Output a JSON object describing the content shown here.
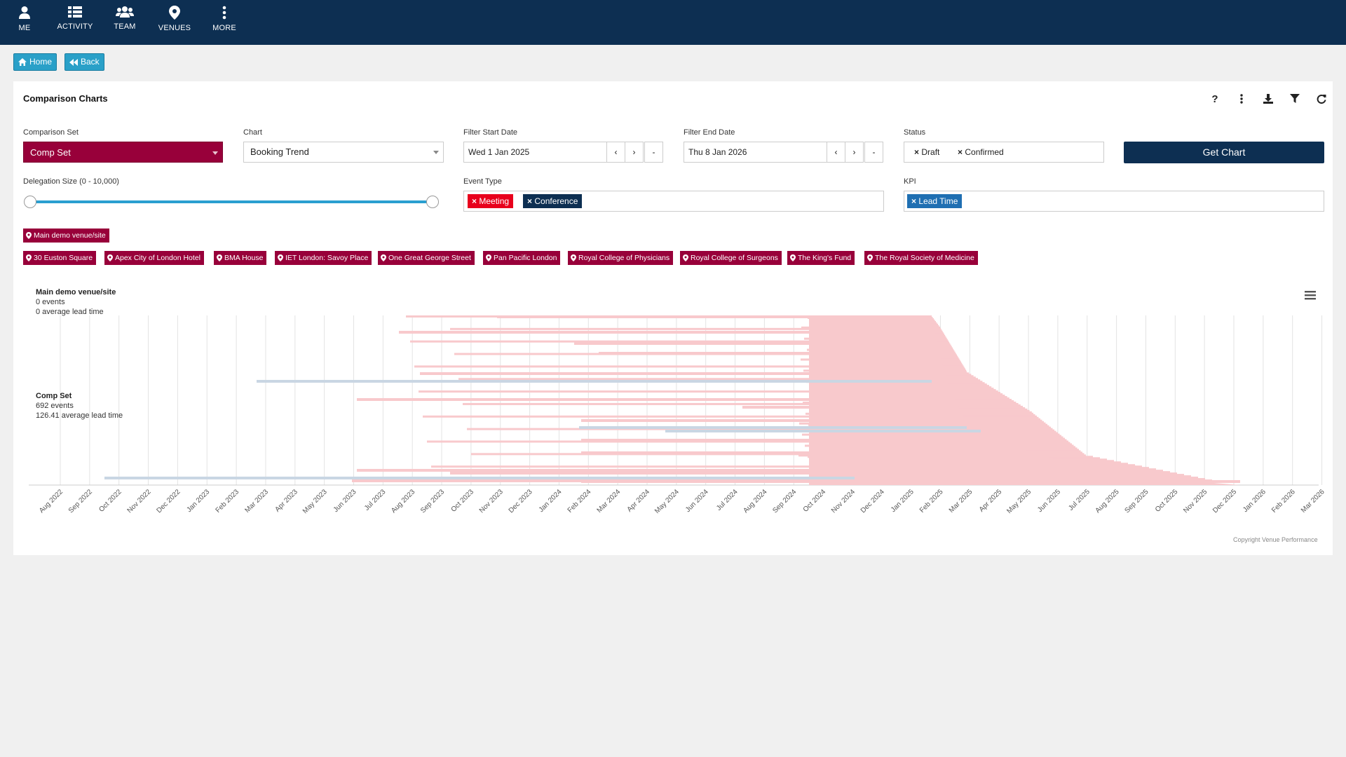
{
  "nav": [
    {
      "label": "ME",
      "icon": "user-icon"
    },
    {
      "label": "ACTIVITY",
      "icon": "list-icon"
    },
    {
      "label": "TEAM",
      "icon": "team-icon"
    },
    {
      "label": "VENUES",
      "icon": "map-pin-icon"
    },
    {
      "label": "MORE",
      "icon": "more-vertical-icon"
    }
  ],
  "breadcrumb": {
    "home": "Home",
    "back": "Back"
  },
  "panel": {
    "title": "Comparison Charts"
  },
  "toolbar": [
    "help-icon",
    "more-vertical-icon",
    "download-icon",
    "filter-icon",
    "refresh-icon"
  ],
  "toolbar_help": "?",
  "form": {
    "comparison_set": {
      "label": "Comparison Set",
      "value": "Comp Set"
    },
    "chart": {
      "label": "Chart",
      "value": "Booking Trend"
    },
    "filter_start": {
      "label": "Filter Start Date",
      "value": "Wed 1 Jan 2025"
    },
    "filter_end": {
      "label": "Filter End Date",
      "value": "Thu 8 Jan 2026"
    },
    "status": {
      "label": "Status",
      "chips": [
        "Draft",
        "Confirmed"
      ]
    },
    "get_chart": "Get Chart",
    "delegation": {
      "label": "Delegation Size (0 - 10,000)",
      "min": 0,
      "max": 10000
    },
    "event_type": {
      "label": "Event Type",
      "chips": [
        "Meeting",
        "Conference"
      ]
    },
    "kpi": {
      "label": "KPI",
      "chips": [
        "Lead Time"
      ]
    },
    "date_buttons": {
      "prev": "‹",
      "next": "›",
      "clear": "-"
    }
  },
  "colors": {
    "nav": "#0d2f52",
    "brand": "#98003a",
    "accent": "#2aa0c8",
    "meeting": "#e8001c",
    "conference": "#0d2f52",
    "kpi": "#1f6fb2",
    "bar_main": "#f8c9cc",
    "bar_comp": "#c9d6e3"
  },
  "main_venue": "Main demo venue/site",
  "venues": [
    "30 Euston Square",
    "Apex City of London Hotel",
    "BMA House",
    "IET London: Savoy Place",
    "One Great George Street",
    "Pan Pacific London",
    "Royal College of Physicians",
    "Royal College of Surgeons",
    "The King's Fund",
    "The Royal Society of Medicine"
  ],
  "chart_data": {
    "type": "bar",
    "orientation": "horizontal-range",
    "xaxis_ticks": [
      "Aug 2022",
      "Sep 2022",
      "Oct 2022",
      "Nov 2022",
      "Dec 2022",
      "Jan 2023",
      "Feb 2023",
      "Mar 2023",
      "Apr 2023",
      "May 2023",
      "Jun 2023",
      "Jul 2023",
      "Aug 2023",
      "Sep 2023",
      "Oct 2023",
      "Nov 2023",
      "Dec 2023",
      "Jan 2024",
      "Feb 2024",
      "Mar 2024",
      "Apr 2024",
      "May 2024",
      "Jun 2024",
      "Jul 2024",
      "Aug 2024",
      "Sep 2024",
      "Oct 2024",
      "Nov 2024",
      "Dec 2024",
      "Jan 2025",
      "Feb 2025",
      "Mar 2025",
      "Apr 2025",
      "May 2025",
      "Jun 2025",
      "Jul 2025",
      "Aug 2025",
      "Sep 2025",
      "Oct 2025",
      "Nov 2025",
      "Dec 2025",
      "Jan 2026",
      "Feb 2026",
      "Mar 2026"
    ],
    "series": [
      {
        "name": "Main demo venue/site",
        "events_label": "0 events",
        "lead_label": "0 average lead time"
      },
      {
        "name": "Comp Set",
        "events_label": "692 events",
        "lead_label": "126.41 average lead time"
      }
    ],
    "grid": true,
    "copyright": "Copyright Venue Performance"
  }
}
